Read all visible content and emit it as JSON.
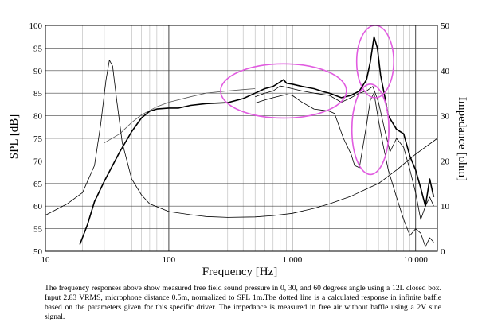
{
  "chart_data": {
    "type": "line",
    "xscale": "log",
    "xlim": [
      10,
      15000
    ],
    "ylim": [
      50,
      100
    ],
    "y2lim": [
      0,
      50
    ],
    "xlabel": "Frequency [Hz]",
    "ylabel": "SPL [dB]",
    "y2label": "Impedance [ohm]",
    "x_ticks": [
      {
        "value": 10,
        "label": "10"
      },
      {
        "value": 100,
        "label": "100"
      },
      {
        "value": 1000,
        "label": "1 000"
      },
      {
        "value": 10000,
        "label": "10 000"
      }
    ],
    "y_ticks": [
      {
        "value": 50,
        "label": "50"
      },
      {
        "value": 55,
        "label": "55"
      },
      {
        "value": 60,
        "label": "60"
      },
      {
        "value": 65,
        "label": "65"
      },
      {
        "value": 70,
        "label": "70"
      },
      {
        "value": 75,
        "label": "75"
      },
      {
        "value": 80,
        "label": "80"
      },
      {
        "value": 85,
        "label": "85"
      },
      {
        "value": 90,
        "label": "90"
      },
      {
        "value": 95,
        "label": "95"
      },
      {
        "value": 100,
        "label": "100"
      }
    ],
    "y2_ticks": [
      {
        "value": 0,
        "label": "0"
      },
      {
        "value": 10,
        "label": "10"
      },
      {
        "value": 20,
        "label": "20"
      },
      {
        "value": 30,
        "label": "30"
      },
      {
        "value": 40,
        "label": "40"
      },
      {
        "value": 50,
        "label": "50"
      }
    ],
    "grid": true,
    "series": [
      {
        "name": "SPL 0 degrees",
        "axis": "left",
        "stroke": "#000000",
        "width": 1.6,
        "points": [
          [
            19,
            51.5
          ],
          [
            22,
            56
          ],
          [
            25,
            61
          ],
          [
            30,
            65.5
          ],
          [
            35,
            69
          ],
          [
            40,
            72
          ],
          [
            50,
            76.5
          ],
          [
            60,
            79.5
          ],
          [
            70,
            81
          ],
          [
            80,
            81.5
          ],
          [
            100,
            81.7
          ],
          [
            120,
            81.7
          ],
          [
            150,
            82.3
          ],
          [
            200,
            82.7
          ],
          [
            300,
            82.9
          ],
          [
            400,
            83.8
          ],
          [
            500,
            85
          ],
          [
            600,
            86
          ],
          [
            700,
            86.5
          ],
          [
            800,
            87.5
          ],
          [
            850,
            88
          ],
          [
            900,
            87.2
          ],
          [
            1000,
            87
          ],
          [
            1200,
            86.5
          ],
          [
            1500,
            86
          ],
          [
            1800,
            85.3
          ],
          [
            2000,
            85
          ],
          [
            2500,
            84
          ],
          [
            3000,
            84.5
          ],
          [
            3500,
            85.5
          ],
          [
            4000,
            88
          ],
          [
            4300,
            92
          ],
          [
            4600,
            97.5
          ],
          [
            4900,
            95
          ],
          [
            5200,
            89
          ],
          [
            5600,
            84.5
          ],
          [
            6000,
            80
          ],
          [
            7000,
            77
          ],
          [
            8000,
            76
          ],
          [
            9000,
            71
          ],
          [
            10000,
            68
          ],
          [
            11000,
            64
          ],
          [
            12000,
            60
          ],
          [
            13000,
            66
          ],
          [
            14000,
            62
          ]
        ]
      },
      {
        "name": "SPL 30 degrees",
        "axis": "left",
        "stroke": "#000000",
        "width": 0.8,
        "points": [
          [
            500,
            84.2
          ],
          [
            600,
            85
          ],
          [
            700,
            85.5
          ],
          [
            800,
            86.6
          ],
          [
            900,
            86.3
          ],
          [
            1000,
            86
          ],
          [
            1200,
            85.5
          ],
          [
            1500,
            85
          ],
          [
            2000,
            84.5
          ],
          [
            2500,
            83
          ],
          [
            3000,
            84
          ],
          [
            3500,
            85
          ],
          [
            4000,
            85.5
          ],
          [
            4500,
            86.5
          ],
          [
            5000,
            83
          ],
          [
            5600,
            77
          ],
          [
            6200,
            72
          ],
          [
            7000,
            75
          ],
          [
            8000,
            73
          ],
          [
            9000,
            68
          ],
          [
            10000,
            63
          ],
          [
            11000,
            57
          ],
          [
            12000,
            60
          ],
          [
            13000,
            62
          ],
          [
            14000,
            60
          ]
        ]
      },
      {
        "name": "SPL 60 degrees",
        "axis": "left",
        "stroke": "#000000",
        "width": 0.8,
        "points": [
          [
            500,
            82.8
          ],
          [
            600,
            83.5
          ],
          [
            700,
            84
          ],
          [
            800,
            84.4
          ],
          [
            900,
            84.7
          ],
          [
            1000,
            84.5
          ],
          [
            1200,
            83
          ],
          [
            1500,
            81.5
          ],
          [
            1800,
            81.2
          ],
          [
            2000,
            81
          ],
          [
            2200,
            80.5
          ],
          [
            2600,
            75
          ],
          [
            3000,
            71.5
          ],
          [
            3200,
            69
          ],
          [
            3500,
            68.5
          ],
          [
            4000,
            78
          ],
          [
            4300,
            83.5
          ],
          [
            4600,
            85
          ],
          [
            5000,
            79
          ],
          [
            5500,
            73
          ],
          [
            6000,
            68
          ],
          [
            7000,
            62
          ],
          [
            8000,
            57
          ],
          [
            9000,
            53.5
          ],
          [
            10000,
            55
          ],
          [
            11000,
            54
          ],
          [
            12000,
            51
          ],
          [
            13000,
            53
          ],
          [
            14000,
            52
          ]
        ]
      },
      {
        "name": "Calculated infinite baffle (dotted)",
        "axis": "left",
        "stroke": "#555555",
        "width": 0.8,
        "points": [
          [
            30,
            74
          ],
          [
            40,
            76
          ],
          [
            50,
            78.5
          ],
          [
            60,
            80.2
          ],
          [
            80,
            82
          ],
          [
            100,
            83
          ],
          [
            150,
            84.2
          ],
          [
            200,
            85
          ],
          [
            300,
            85.5
          ],
          [
            400,
            85.8
          ],
          [
            500,
            86
          ]
        ]
      },
      {
        "name": "Impedance",
        "axis": "right",
        "stroke": "#000000",
        "width": 0.8,
        "points": [
          [
            10,
            8
          ],
          [
            15,
            10.5
          ],
          [
            20,
            13
          ],
          [
            25,
            19
          ],
          [
            28,
            28
          ],
          [
            31,
            38
          ],
          [
            33,
            42.3
          ],
          [
            35,
            41
          ],
          [
            38,
            33
          ],
          [
            42,
            24
          ],
          [
            50,
            16
          ],
          [
            60,
            12.5
          ],
          [
            70,
            10.5
          ],
          [
            100,
            8.8
          ],
          [
            150,
            8.1
          ],
          [
            200,
            7.7
          ],
          [
            300,
            7.5
          ],
          [
            500,
            7.6
          ],
          [
            700,
            7.9
          ],
          [
            1000,
            8.4
          ],
          [
            1500,
            9.5
          ],
          [
            2000,
            10.5
          ],
          [
            3000,
            12.2
          ],
          [
            4000,
            13.8
          ],
          [
            5000,
            15
          ],
          [
            7000,
            18
          ],
          [
            10000,
            21.5
          ],
          [
            15000,
            25
          ]
        ]
      }
    ],
    "circles": [
      {
        "label": "highlight 400-1800 Hz",
        "cx": 850,
        "cy": 85.5,
        "rx_decades": 0.51,
        "ry_db": 6
      },
      {
        "label": "highlight 4-6 kHz peak",
        "cx": 4700,
        "cy": 92,
        "rx_decades": 0.15,
        "ry_db": 8
      },
      {
        "label": "highlight 3-6 kHz off-axis dip",
        "cx": 4300,
        "cy": 77,
        "rx_decades": 0.15,
        "ry_db": 10
      }
    ],
    "circle_color": "#e15ce0"
  },
  "caption": {
    "text": "The frequency responses above show measured free field sound pressure in 0, 30, and 60 degrees angle using a 12L closed box. Input 2.83 VRMS, microphone distance 0.5m, normalized to SPL 1m.The dotted line is a calculated response in infinite baffle based on the parameters given for this specific driver. The impedance is measured in free air without baffle using a 2V sine signal."
  }
}
